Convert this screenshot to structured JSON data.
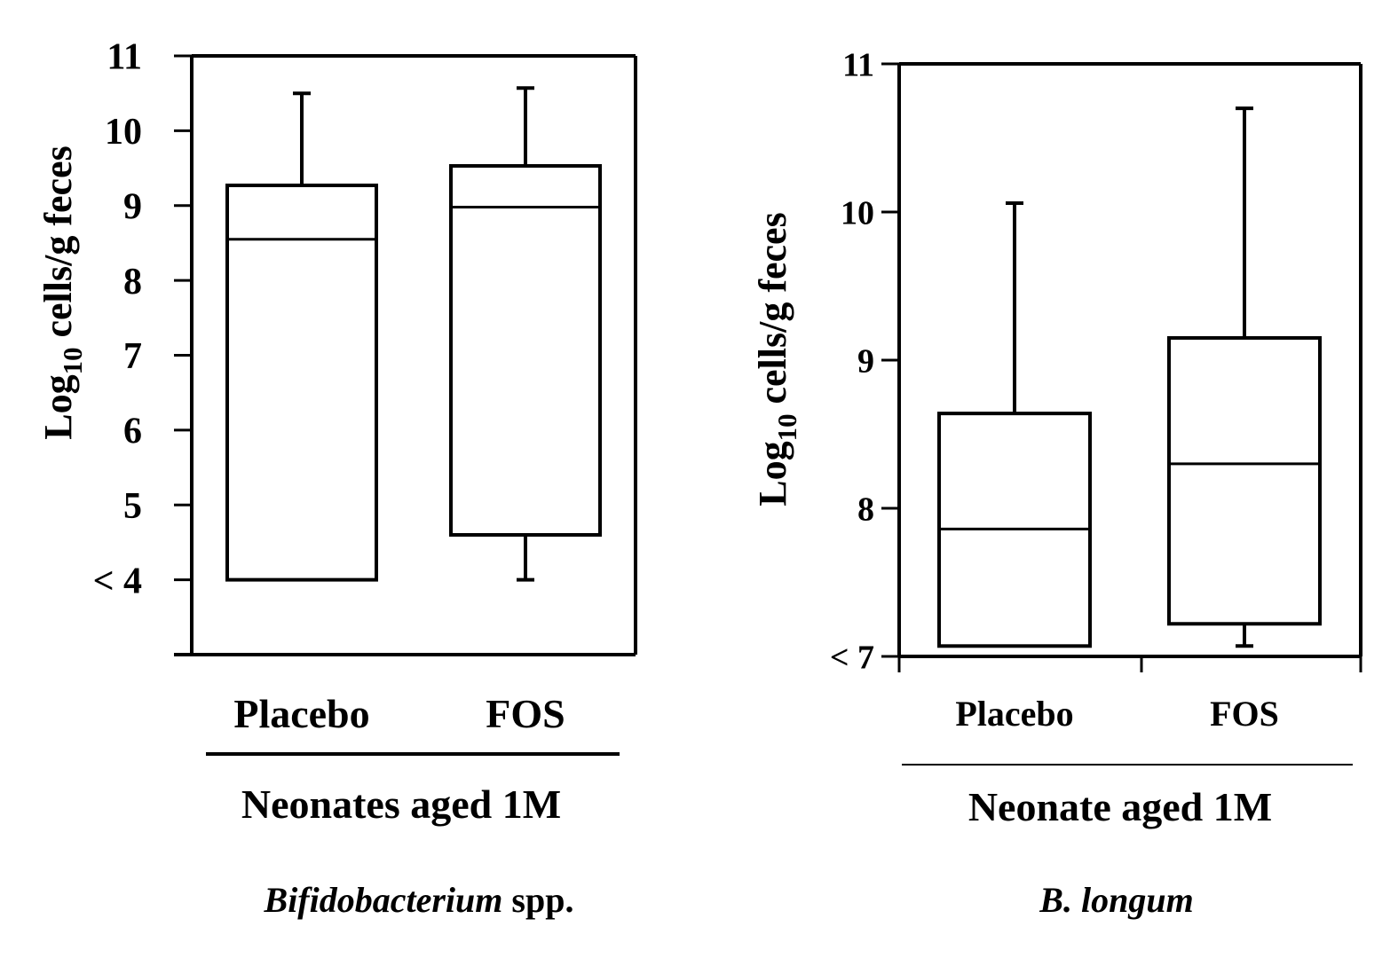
{
  "chart_data": [
    {
      "type": "box",
      "ylabel": {
        "base": "Log",
        "sub": "10",
        "rest": " cells/g feces"
      },
      "yticks": [
        {
          "value": 11,
          "label": "11"
        },
        {
          "value": 10,
          "label": "10"
        },
        {
          "value": 9,
          "label": "9"
        },
        {
          "value": 8,
          "label": "8"
        },
        {
          "value": 7,
          "label": "7"
        },
        {
          "value": 6,
          "label": "6"
        },
        {
          "value": 5,
          "label": "5"
        },
        {
          "value": 4,
          "label": "< 4"
        }
      ],
      "ylim": [
        3,
        11
      ],
      "categories": [
        "Placebo",
        "FOS"
      ],
      "group_label": "Neonates aged 1M",
      "caption": {
        "italic": "Bifidobacterium",
        "rest": " spp."
      },
      "boxes": [
        {
          "category": "Placebo",
          "whisker_low": 4.0,
          "q1": 4.0,
          "median": 8.55,
          "q3": 9.27,
          "whisker_high": 10.5
        },
        {
          "category": "FOS",
          "whisker_low": 4.0,
          "q1": 4.6,
          "median": 8.98,
          "q3": 9.53,
          "whisker_high": 10.57
        }
      ]
    },
    {
      "type": "box",
      "ylabel": {
        "base": "Log",
        "sub": "10",
        "rest": " cells/g feces"
      },
      "yticks": [
        {
          "value": 11,
          "label": "11"
        },
        {
          "value": 10,
          "label": "10"
        },
        {
          "value": 9,
          "label": "9"
        },
        {
          "value": 8,
          "label": "8"
        },
        {
          "value": 7,
          "label": "< 7"
        }
      ],
      "ylim": [
        7,
        11
      ],
      "categories": [
        "Placebo",
        "FOS"
      ],
      "group_label": "Neonate aged 1M",
      "caption": {
        "italic": "B. longum",
        "rest": ""
      },
      "boxes": [
        {
          "category": "Placebo",
          "whisker_low": 7.07,
          "q1": 7.07,
          "median": 7.86,
          "q3": 8.64,
          "whisker_high": 10.06
        },
        {
          "category": "FOS",
          "whisker_low": 7.07,
          "q1": 7.22,
          "median": 8.3,
          "q3": 9.15,
          "whisker_high": 10.7
        }
      ]
    }
  ]
}
